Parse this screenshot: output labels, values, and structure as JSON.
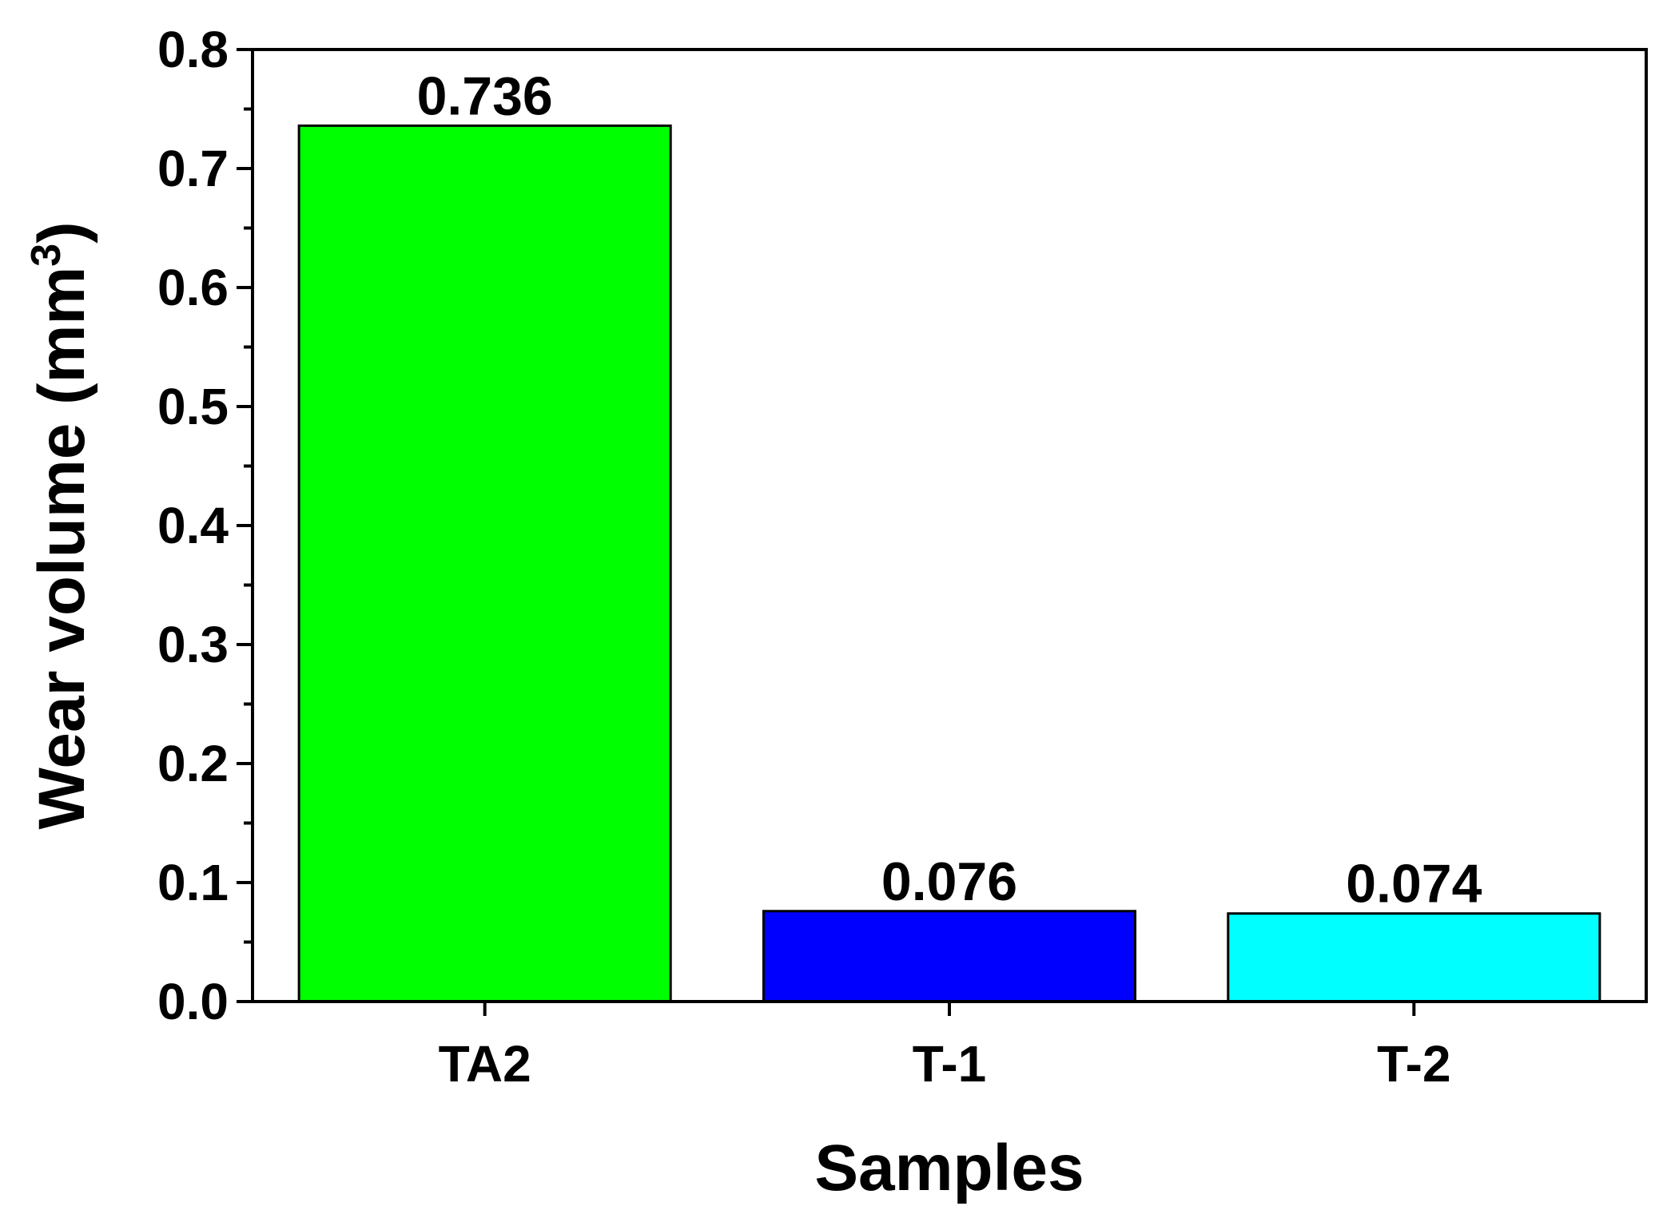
{
  "chart_data": {
    "type": "bar",
    "title": "",
    "xlabel": "Samples",
    "ylabel": {
      "prefix": "Wear volume (mm",
      "sup": "3",
      "suffix": ")"
    },
    "categories": [
      "TA2",
      "T-1",
      "T-2"
    ],
    "values": [
      0.736,
      0.076,
      0.074
    ],
    "data_labels": [
      "0.736",
      "0.076",
      "0.074"
    ],
    "bar_colors": [
      "#00ff00",
      "#0000ff",
      "#00ffff"
    ],
    "ylim": [
      0,
      0.8
    ],
    "yticks": [
      0.0,
      0.1,
      0.2,
      0.3,
      0.4,
      0.5,
      0.6,
      0.7,
      0.8
    ],
    "ytick_labels": [
      "0.0",
      "0.1",
      "0.2",
      "0.3",
      "0.4",
      "0.5",
      "0.6",
      "0.7",
      "0.8"
    ],
    "grid": false,
    "legend": "none"
  }
}
